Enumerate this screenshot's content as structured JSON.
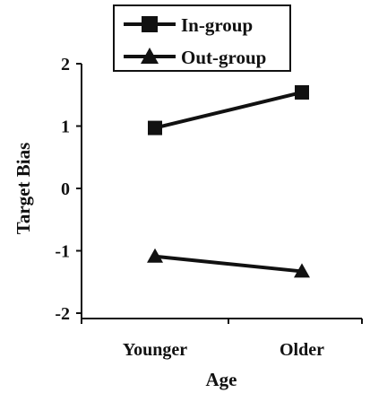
{
  "chart_data": {
    "type": "line",
    "categories": [
      "Younger",
      "Older"
    ],
    "series": [
      {
        "name": "In-group",
        "values": [
          0.97,
          1.54
        ],
        "marker": "square"
      },
      {
        "name": "Out-group",
        "values": [
          -1.09,
          -1.33
        ],
        "marker": "triangle"
      }
    ],
    "xlabel": "Age",
    "ylabel": "Target Bias",
    "ylim": [
      -2,
      2
    ],
    "yticks": [
      2,
      1,
      0,
      -1,
      -2
    ],
    "ytick_labels": [
      "2",
      "1",
      "0",
      "-1",
      "-2"
    ],
    "grid": false,
    "legend_position": "top-center",
    "line_color": "#111111"
  }
}
